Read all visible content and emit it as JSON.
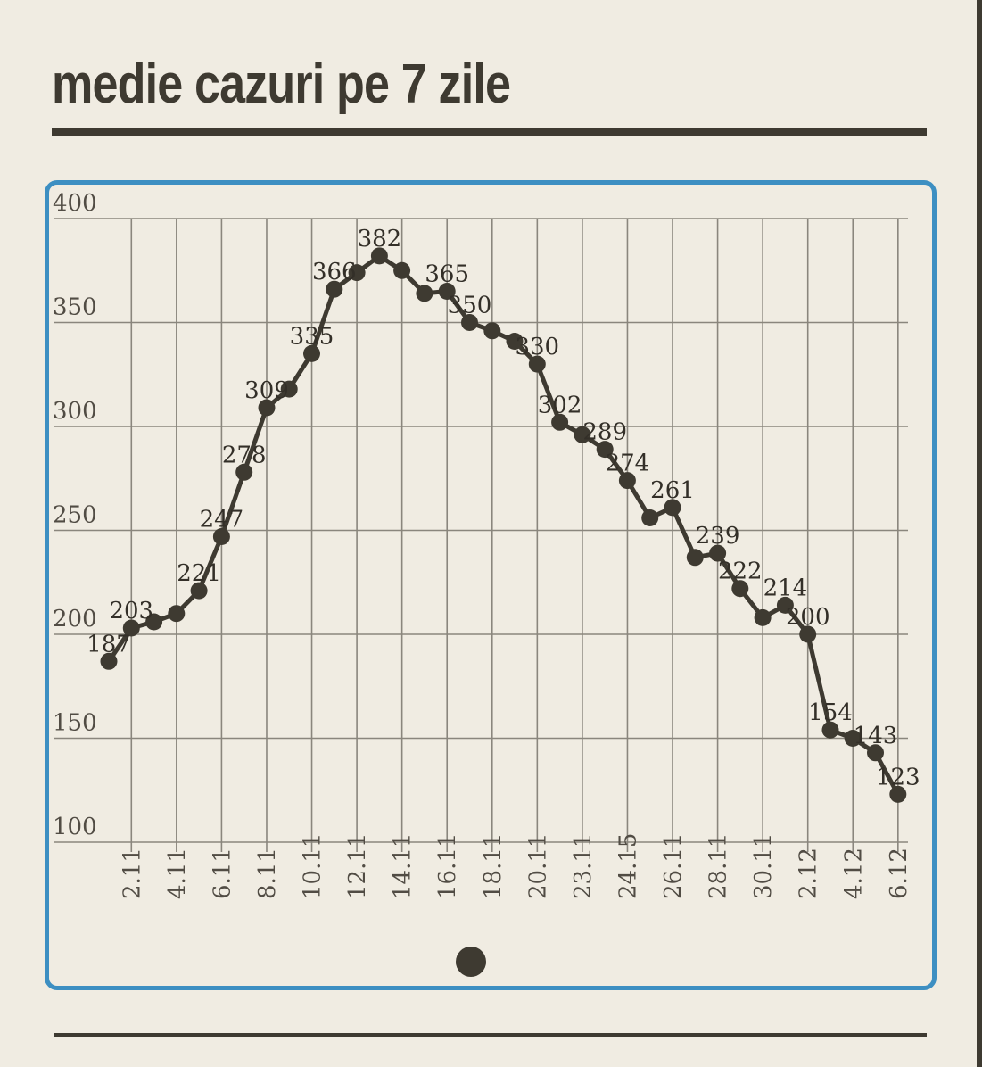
{
  "header": {
    "title": "medie cazuri pe 7 zile"
  },
  "chart_data": {
    "type": "line",
    "title": "medie cazuri pe 7 zile",
    "xlabel": "",
    "ylabel": "",
    "ylim": [
      100,
      400
    ],
    "grid": true,
    "legend": false,
    "y_ticks": [
      400,
      350,
      300,
      250,
      200,
      150,
      100
    ],
    "x_tick_labels": [
      "2.11",
      "4.11",
      "6.11",
      "8.11",
      "10.11",
      "12.11",
      "14.11",
      "16.11",
      "18.11",
      "20.11",
      "23.11",
      "24.15",
      "26.11",
      "28.11",
      "30.11",
      "2.12",
      "4.12",
      "6.12"
    ],
    "points": [
      {
        "value": 187,
        "label": "187"
      },
      {
        "value": 203,
        "label": "203"
      },
      {
        "value": 206,
        "label": ""
      },
      {
        "value": 210,
        "label": ""
      },
      {
        "value": 221,
        "label": "221"
      },
      {
        "value": 247,
        "label": "247"
      },
      {
        "value": 278,
        "label": "278"
      },
      {
        "value": 309,
        "label": "309"
      },
      {
        "value": 318,
        "label": ""
      },
      {
        "value": 335,
        "label": "335"
      },
      {
        "value": 366,
        "label": "366"
      },
      {
        "value": 374,
        "label": ""
      },
      {
        "value": 382,
        "label": "382"
      },
      {
        "value": 375,
        "label": ""
      },
      {
        "value": 364,
        "label": ""
      },
      {
        "value": 365,
        "label": "365"
      },
      {
        "value": 350,
        "label": "350"
      },
      {
        "value": 346,
        "label": ""
      },
      {
        "value": 341,
        "label": ""
      },
      {
        "value": 330,
        "label": "330"
      },
      {
        "value": 302,
        "label": "302"
      },
      {
        "value": 296,
        "label": ""
      },
      {
        "value": 289,
        "label": "289"
      },
      {
        "value": 274,
        "label": "274"
      },
      {
        "value": 256,
        "label": ""
      },
      {
        "value": 261,
        "label": "261"
      },
      {
        "value": 237,
        "label": ""
      },
      {
        "value": 239,
        "label": "239"
      },
      {
        "value": 222,
        "label": "222"
      },
      {
        "value": 208,
        "label": ""
      },
      {
        "value": 214,
        "label": "214"
      },
      {
        "value": 200,
        "label": "200"
      },
      {
        "value": 154,
        "label": "154"
      },
      {
        "value": 150,
        "label": ""
      },
      {
        "value": 143,
        "label": "143"
      },
      {
        "value": 123,
        "label": "123"
      }
    ]
  },
  "theme": {
    "background": "#f0ece2",
    "ink": "#3e3a31",
    "grid_color": "#8a867d",
    "axis_text_color": "#514c44",
    "data_label_color": "#332f28",
    "accent_border": "#3d8fc2"
  },
  "icons": {
    "pagination_dot": "filled-circle"
  }
}
